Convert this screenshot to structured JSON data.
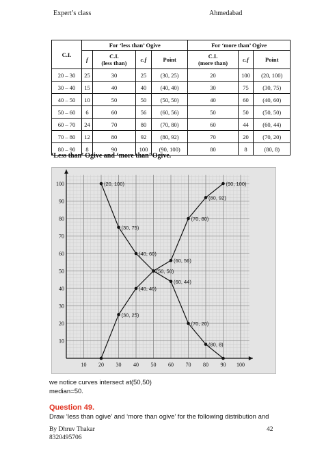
{
  "header": {
    "left": "Expert’s class",
    "right": "Ahmedabad"
  },
  "table": {
    "group_less": "For ‘less than’ Ogive",
    "group_more": "For ‘more than’ Ogive",
    "col_ci": "C.I.",
    "col_f": "f",
    "col_ci_less": [
      "C.I.",
      "(less than)"
    ],
    "col_cf": "c.f",
    "col_point": "Point",
    "col_ci_more": [
      "C.I.",
      "(more than)"
    ],
    "col_cf2": "c.f",
    "col_point2": "Point",
    "rows": [
      [
        "20 – 30",
        "25",
        "30",
        "25",
        "(30, 25)",
        "20",
        "100",
        "(20, 100)"
      ],
      [
        "30 – 40",
        "15",
        "40",
        "40",
        "(40, 40)",
        "30",
        "75",
        "(30, 75)"
      ],
      [
        "40 – 50",
        "10",
        "50",
        "50",
        "(50, 50)",
        "40",
        "60",
        "(40, 60)"
      ],
      [
        "50 – 60",
        "6",
        "60",
        "56",
        "(60, 56)",
        "50",
        "50",
        "(50, 50)"
      ],
      [
        "60 – 70",
        "24",
        "70",
        "80",
        "(70, 80)",
        "60",
        "44",
        "(60, 44)"
      ],
      [
        "70 – 80",
        "12",
        "80",
        "92",
        "(80, 92)",
        "70",
        "20",
        "(70, 20)"
      ],
      [
        "80 – 90",
        "8",
        "90",
        "100",
        "(90, 100)",
        "80",
        "8",
        "(80, 8)"
      ]
    ]
  },
  "caption": "‘Less than’ Ogive and ‘more than’ Ogive.",
  "chart_data": {
    "type": "line",
    "xlim": [
      0,
      105
    ],
    "ylim": [
      0,
      105
    ],
    "x_ticks": [
      10,
      20,
      30,
      40,
      50,
      60,
      70,
      80,
      90,
      100
    ],
    "y_ticks": [
      10,
      20,
      30,
      40,
      50,
      60,
      70,
      80,
      90,
      100
    ],
    "grid": true,
    "series": [
      {
        "points": [
          [
            20,
            0
          ],
          [
            30,
            25
          ],
          [
            40,
            40
          ],
          [
            50,
            50
          ],
          [
            60,
            56
          ],
          [
            70,
            80
          ],
          [
            80,
            92
          ],
          [
            90,
            100
          ]
        ],
        "labels": [
          "",
          "(30, 25)",
          "(40, 40)",
          "(50, 50)",
          "(60, 56)",
          "(70, 80)",
          "(80, 92)",
          "(90, 100)"
        ]
      },
      {
        "points": [
          [
            20,
            100
          ],
          [
            30,
            75
          ],
          [
            40,
            60
          ],
          [
            50,
            50
          ],
          [
            60,
            44
          ],
          [
            70,
            20
          ],
          [
            80,
            8
          ],
          [
            90,
            0
          ]
        ],
        "labels": [
          "(20, 100)",
          "(30, 75)",
          "(40, 60)",
          "",
          "(60, 44)",
          "(70, 20)",
          "(80, 8)",
          ""
        ]
      }
    ]
  },
  "notes": {
    "line1": "we notice curves  intersect at(50,50)",
    "line2": "median=50."
  },
  "question": {
    "title": "Question 49.",
    "text": "Draw ‘less than ogive’ and ‘more than ogive’ for the following distribution and"
  },
  "footer": {
    "name": "By Dhruv  Thakar",
    "phone": "8320495706",
    "page": "42"
  }
}
